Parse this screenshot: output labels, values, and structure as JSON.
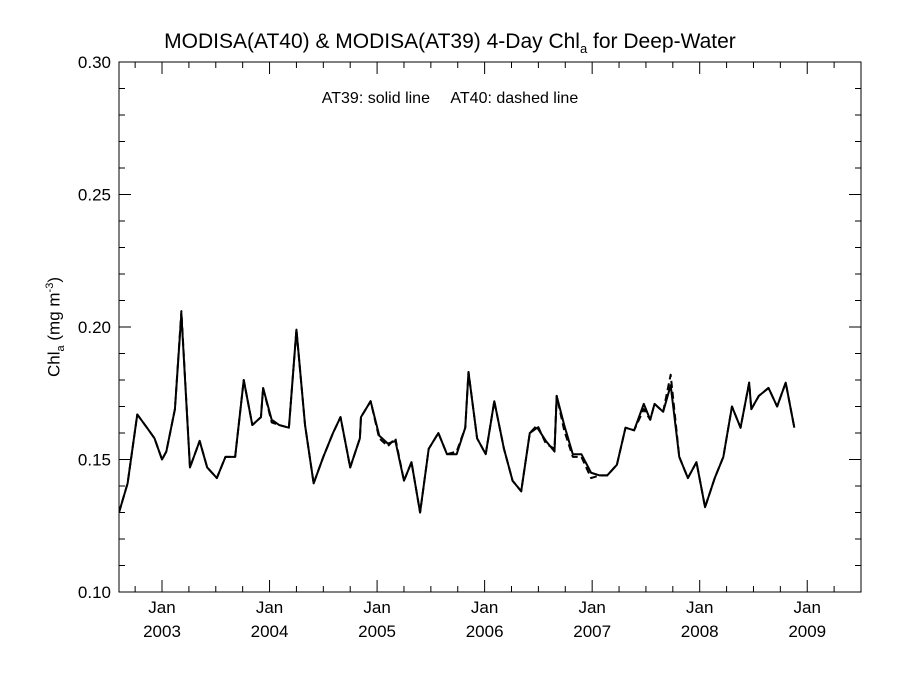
{
  "chart_data": {
    "type": "line",
    "title_main": "MODISA(AT40) & MODISA(AT39) 4-Day Chl",
    "title_sub": "a",
    "title_tail": " for Deep-Water",
    "annotation_solid": "AT39: solid line",
    "annotation_dashed": "AT40: dashed line",
    "ylabel_main": "Chl",
    "ylabel_sub": "a",
    "ylabel_unit": " (mg m",
    "ylabel_sup": "-3",
    "ylabel_close": ")",
    "ylim": [
      0.1,
      0.3
    ],
    "yticks": [
      "0.10",
      "0.15",
      "0.20",
      "0.25",
      "0.30"
    ],
    "xlim": [
      2002.6,
      2009.5
    ],
    "xticks": [
      {
        "x": 2003.0,
        "month": "Jan",
        "year": "2003"
      },
      {
        "x": 2004.0,
        "month": "Jan",
        "year": "2004"
      },
      {
        "x": 2005.0,
        "month": "Jan",
        "year": "2005"
      },
      {
        "x": 2006.0,
        "month": "Jan",
        "year": "2006"
      },
      {
        "x": 2007.0,
        "month": "Jan",
        "year": "2007"
      },
      {
        "x": 2008.0,
        "month": "Jan",
        "year": "2008"
      },
      {
        "x": 2009.0,
        "month": "Jan",
        "year": "2009"
      }
    ],
    "series": [
      {
        "name": "AT39",
        "style": "solid",
        "points": [
          [
            2002.6,
            0.13
          ],
          [
            2002.68,
            0.141
          ],
          [
            2002.77,
            0.167
          ],
          [
            2002.86,
            0.162
          ],
          [
            2002.93,
            0.158
          ],
          [
            2003.0,
            0.15
          ],
          [
            2003.04,
            0.153
          ],
          [
            2003.12,
            0.169
          ],
          [
            2003.18,
            0.205
          ],
          [
            2003.26,
            0.147
          ],
          [
            2003.35,
            0.157
          ],
          [
            2003.42,
            0.147
          ],
          [
            2003.51,
            0.143
          ],
          [
            2003.59,
            0.151
          ],
          [
            2003.68,
            0.151
          ],
          [
            2003.76,
            0.18
          ],
          [
            2003.84,
            0.163
          ],
          [
            2003.92,
            0.166
          ],
          [
            2003.94,
            0.177
          ],
          [
            2004.02,
            0.165
          ],
          [
            2004.09,
            0.163
          ],
          [
            2004.18,
            0.162
          ],
          [
            2004.25,
            0.199
          ],
          [
            2004.33,
            0.163
          ],
          [
            2004.41,
            0.141
          ],
          [
            2004.5,
            0.151
          ],
          [
            2004.59,
            0.16
          ],
          [
            2004.66,
            0.166
          ],
          [
            2004.75,
            0.147
          ],
          [
            2004.84,
            0.158
          ],
          [
            2004.85,
            0.166
          ],
          [
            2004.94,
            0.172
          ],
          [
            2005.02,
            0.159
          ],
          [
            2005.1,
            0.156
          ],
          [
            2005.17,
            0.157
          ],
          [
            2005.25,
            0.142
          ],
          [
            2005.32,
            0.149
          ],
          [
            2005.4,
            0.13
          ],
          [
            2005.48,
            0.154
          ],
          [
            2005.57,
            0.16
          ],
          [
            2005.65,
            0.152
          ],
          [
            2005.74,
            0.152
          ],
          [
            2005.82,
            0.162
          ],
          [
            2005.85,
            0.183
          ],
          [
            2005.93,
            0.158
          ],
          [
            2006.01,
            0.152
          ],
          [
            2006.09,
            0.172
          ],
          [
            2006.18,
            0.154
          ],
          [
            2006.26,
            0.142
          ],
          [
            2006.34,
            0.138
          ],
          [
            2006.42,
            0.16
          ],
          [
            2006.49,
            0.162
          ],
          [
            2006.57,
            0.157
          ],
          [
            2006.65,
            0.153
          ],
          [
            2006.67,
            0.174
          ],
          [
            2006.74,
            0.163
          ],
          [
            2006.82,
            0.152
          ],
          [
            2006.9,
            0.152
          ],
          [
            2006.99,
            0.145
          ],
          [
            2007.07,
            0.144
          ],
          [
            2007.14,
            0.144
          ],
          [
            2007.23,
            0.148
          ],
          [
            2007.31,
            0.162
          ],
          [
            2007.39,
            0.161
          ],
          [
            2007.48,
            0.171
          ],
          [
            2007.54,
            0.165
          ],
          [
            2007.58,
            0.171
          ],
          [
            2007.66,
            0.168
          ],
          [
            2007.73,
            0.178
          ],
          [
            2007.81,
            0.151
          ],
          [
            2007.89,
            0.143
          ],
          [
            2007.97,
            0.149
          ],
          [
            2008.05,
            0.132
          ],
          [
            2008.14,
            0.143
          ],
          [
            2008.22,
            0.151
          ],
          [
            2008.3,
            0.17
          ],
          [
            2008.38,
            0.162
          ],
          [
            2008.46,
            0.179
          ],
          [
            2008.48,
            0.169
          ],
          [
            2008.55,
            0.174
          ],
          [
            2008.64,
            0.177
          ],
          [
            2008.72,
            0.17
          ],
          [
            2008.8,
            0.179
          ],
          [
            2008.88,
            0.162
          ]
        ]
      },
      {
        "name": "AT40",
        "style": "dashed",
        "points": [
          [
            2002.6,
            0.13
          ],
          [
            2002.68,
            0.141
          ],
          [
            2002.77,
            0.167
          ],
          [
            2002.86,
            0.162
          ],
          [
            2002.93,
            0.158
          ],
          [
            2003.0,
            0.15
          ],
          [
            2003.04,
            0.153
          ],
          [
            2003.12,
            0.169
          ],
          [
            2003.18,
            0.206
          ],
          [
            2003.26,
            0.147
          ],
          [
            2003.35,
            0.157
          ],
          [
            2003.42,
            0.147
          ],
          [
            2003.51,
            0.143
          ],
          [
            2003.59,
            0.151
          ],
          [
            2003.68,
            0.151
          ],
          [
            2003.76,
            0.18
          ],
          [
            2003.84,
            0.163
          ],
          [
            2003.92,
            0.166
          ],
          [
            2003.94,
            0.177
          ],
          [
            2004.02,
            0.164
          ],
          [
            2004.09,
            0.163
          ],
          [
            2004.18,
            0.162
          ],
          [
            2004.25,
            0.199
          ],
          [
            2004.33,
            0.163
          ],
          [
            2004.41,
            0.141
          ],
          [
            2004.5,
            0.151
          ],
          [
            2004.59,
            0.16
          ],
          [
            2004.66,
            0.166
          ],
          [
            2004.75,
            0.147
          ],
          [
            2004.84,
            0.158
          ],
          [
            2004.85,
            0.166
          ],
          [
            2004.94,
            0.172
          ],
          [
            2005.02,
            0.158
          ],
          [
            2005.1,
            0.155
          ],
          [
            2005.17,
            0.158
          ],
          [
            2005.25,
            0.142
          ],
          [
            2005.32,
            0.149
          ],
          [
            2005.4,
            0.13
          ],
          [
            2005.48,
            0.154
          ],
          [
            2005.57,
            0.16
          ],
          [
            2005.65,
            0.152
          ],
          [
            2005.74,
            0.153
          ],
          [
            2005.82,
            0.162
          ],
          [
            2005.85,
            0.183
          ],
          [
            2005.93,
            0.158
          ],
          [
            2006.01,
            0.152
          ],
          [
            2006.09,
            0.172
          ],
          [
            2006.18,
            0.154
          ],
          [
            2006.26,
            0.142
          ],
          [
            2006.34,
            0.138
          ],
          [
            2006.42,
            0.16
          ],
          [
            2006.49,
            0.163
          ],
          [
            2006.57,
            0.156
          ],
          [
            2006.65,
            0.154
          ],
          [
            2006.67,
            0.174
          ],
          [
            2006.74,
            0.161
          ],
          [
            2006.82,
            0.151
          ],
          [
            2006.9,
            0.151
          ],
          [
            2006.99,
            0.143
          ],
          [
            2007.07,
            0.144
          ],
          [
            2007.14,
            0.144
          ],
          [
            2007.23,
            0.148
          ],
          [
            2007.31,
            0.162
          ],
          [
            2007.39,
            0.161
          ],
          [
            2007.48,
            0.169
          ],
          [
            2007.54,
            0.165
          ],
          [
            2007.58,
            0.171
          ],
          [
            2007.66,
            0.168
          ],
          [
            2007.73,
            0.182
          ],
          [
            2007.81,
            0.151
          ],
          [
            2007.89,
            0.143
          ],
          [
            2007.97,
            0.149
          ],
          [
            2008.05,
            0.132
          ],
          [
            2008.14,
            0.143
          ],
          [
            2008.22,
            0.151
          ],
          [
            2008.3,
            0.17
          ],
          [
            2008.38,
            0.162
          ],
          [
            2008.46,
            0.179
          ],
          [
            2008.48,
            0.169
          ],
          [
            2008.55,
            0.174
          ],
          [
            2008.64,
            0.177
          ],
          [
            2008.72,
            0.17
          ],
          [
            2008.8,
            0.179
          ],
          [
            2008.88,
            0.162
          ]
        ]
      }
    ],
    "grid": false,
    "legend": "top-center text annotation"
  }
}
